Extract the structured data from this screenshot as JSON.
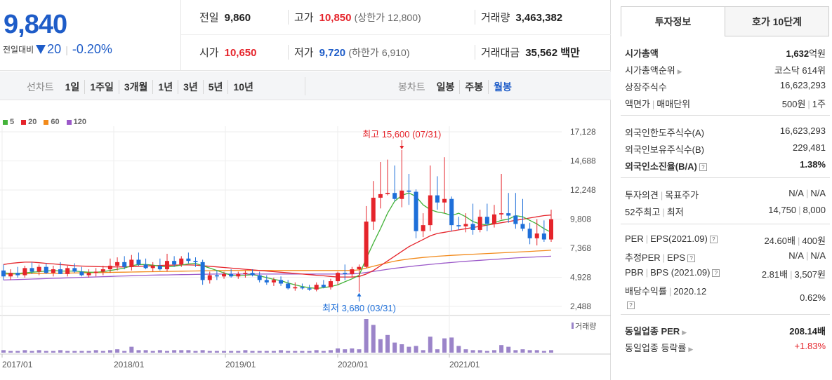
{
  "quote": {
    "price": "9,840",
    "change_label": "전일대비",
    "change_amount": "20",
    "change_pct": "-0.20%",
    "stats": {
      "prev_close_label": "전일",
      "prev_close": "9,860",
      "high_label": "고가",
      "high": "10,850",
      "upper_limit_label": "(상한가",
      "upper_limit": "12,800)",
      "volume_label": "거래량",
      "volume": "3,463,382",
      "open_label": "시가",
      "open": "10,650",
      "low_label": "저가",
      "low": "9,720",
      "lower_limit_label": "(하한가",
      "lower_limit": "6,910)",
      "trade_value_label": "거래대금",
      "trade_value": "35,562 백만"
    }
  },
  "tabs": {
    "line_chart_label": "선차트",
    "periods": [
      "1일",
      "1주일",
      "3개월",
      "1년",
      "3년",
      "5년",
      "10년"
    ],
    "candle_label": "봉차트",
    "candle_periods": [
      "일봉",
      "주봉",
      "월봉"
    ],
    "candle_selected": "월봉"
  },
  "legend": [
    {
      "label": "5",
      "color": "#44b33a"
    },
    {
      "label": "20",
      "color": "#e5242b"
    },
    {
      "label": "60",
      "color": "#f28a1b"
    },
    {
      "label": "120",
      "color": "#9b59c9"
    }
  ],
  "chart_data": {
    "type": "candlestick",
    "y_ticks": [
      "17,128",
      "14,688",
      "12,248",
      "9,808",
      "7,368",
      "4,928",
      "2,488"
    ],
    "ylim": [
      2488,
      17128
    ],
    "x_ticks": [
      "2017/01",
      "2018/01",
      "2019/01",
      "2020/01",
      "2021/01"
    ],
    "max_annotation": "최고 15,600 (07/31)",
    "min_annotation": "최저 3,680 (03/31)",
    "volume_label": "거래량",
    "colors": {
      "up": "#e5242b",
      "down": "#1e6fd9",
      "volume": "#9b84c9"
    },
    "candles": [
      {
        "o": 5500,
        "h": 6000,
        "l": 4700,
        "c": 5000
      },
      {
        "o": 5000,
        "h": 5600,
        "l": 4700,
        "c": 5300
      },
      {
        "o": 5300,
        "h": 5800,
        "l": 4900,
        "c": 5100
      },
      {
        "o": 5100,
        "h": 5900,
        "l": 4900,
        "c": 5700
      },
      {
        "o": 5700,
        "h": 6200,
        "l": 5200,
        "c": 5400
      },
      {
        "o": 5400,
        "h": 6000,
        "l": 5100,
        "c": 5800
      },
      {
        "o": 5800,
        "h": 6100,
        "l": 5200,
        "c": 5300
      },
      {
        "o": 5300,
        "h": 5900,
        "l": 5000,
        "c": 5600
      },
      {
        "o": 5600,
        "h": 6200,
        "l": 5200,
        "c": 5200
      },
      {
        "o": 5200,
        "h": 5900,
        "l": 5000,
        "c": 5700
      },
      {
        "o": 5700,
        "h": 6100,
        "l": 5300,
        "c": 5400
      },
      {
        "o": 5400,
        "h": 5800,
        "l": 5000,
        "c": 5100
      },
      {
        "o": 5100,
        "h": 5600,
        "l": 4900,
        "c": 5300
      },
      {
        "o": 5300,
        "h": 5700,
        "l": 5000,
        "c": 5400
      },
      {
        "o": 5400,
        "h": 5900,
        "l": 5100,
        "c": 5600
      },
      {
        "o": 5600,
        "h": 6500,
        "l": 5300,
        "c": 5900
      },
      {
        "o": 5900,
        "h": 6600,
        "l": 5500,
        "c": 6200
      },
      {
        "o": 6200,
        "h": 6700,
        "l": 5600,
        "c": 5800
      },
      {
        "o": 5800,
        "h": 6800,
        "l": 5500,
        "c": 6400
      },
      {
        "o": 6400,
        "h": 7000,
        "l": 5900,
        "c": 6000
      },
      {
        "o": 6000,
        "h": 6500,
        "l": 5600,
        "c": 5700
      },
      {
        "o": 5700,
        "h": 6200,
        "l": 5400,
        "c": 5900
      },
      {
        "o": 5900,
        "h": 6500,
        "l": 5500,
        "c": 5600
      },
      {
        "o": 5600,
        "h": 6900,
        "l": 5400,
        "c": 6300
      },
      {
        "o": 6300,
        "h": 6700,
        "l": 5800,
        "c": 6000
      },
      {
        "o": 6000,
        "h": 6700,
        "l": 5800,
        "c": 6500
      },
      {
        "o": 6500,
        "h": 7000,
        "l": 6100,
        "c": 6300
      },
      {
        "o": 6300,
        "h": 6600,
        "l": 5800,
        "c": 6200
      },
      {
        "o": 6200,
        "h": 6400,
        "l": 4300,
        "c": 4700
      },
      {
        "o": 4700,
        "h": 5400,
        "l": 4400,
        "c": 5100
      },
      {
        "o": 5100,
        "h": 5500,
        "l": 4700,
        "c": 5000
      },
      {
        "o": 5000,
        "h": 5400,
        "l": 4800,
        "c": 5200
      },
      {
        "o": 5200,
        "h": 5600,
        "l": 4900,
        "c": 5000
      },
      {
        "o": 5000,
        "h": 5400,
        "l": 4800,
        "c": 5200
      },
      {
        "o": 5200,
        "h": 5500,
        "l": 4900,
        "c": 5300
      },
      {
        "o": 5300,
        "h": 5600,
        "l": 5000,
        "c": 5100
      },
      {
        "o": 5100,
        "h": 5400,
        "l": 4500,
        "c": 4700
      },
      {
        "o": 4700,
        "h": 5100,
        "l": 4300,
        "c": 4500
      },
      {
        "o": 4500,
        "h": 4900,
        "l": 4200,
        "c": 4700
      },
      {
        "o": 4700,
        "h": 5000,
        "l": 4200,
        "c": 4400
      },
      {
        "o": 4400,
        "h": 4700,
        "l": 3900,
        "c": 4000
      },
      {
        "o": 4000,
        "h": 4500,
        "l": 3800,
        "c": 4100
      },
      {
        "o": 4100,
        "h": 4400,
        "l": 3900,
        "c": 4000
      },
      {
        "o": 4000,
        "h": 4300,
        "l": 3800,
        "c": 3900
      },
      {
        "o": 3900,
        "h": 4500,
        "l": 3750,
        "c": 4300
      },
      {
        "o": 4300,
        "h": 4700,
        "l": 4000,
        "c": 4100
      },
      {
        "o": 4100,
        "h": 4800,
        "l": 3900,
        "c": 4600
      },
      {
        "o": 4600,
        "h": 5400,
        "l": 4300,
        "c": 5300
      },
      {
        "o": 5300,
        "h": 6000,
        "l": 4700,
        "c": 5200
      },
      {
        "o": 5200,
        "h": 5800,
        "l": 4900,
        "c": 5600
      },
      {
        "o": 5600,
        "h": 6000,
        "l": 3680,
        "c": 5800
      },
      {
        "o": 5800,
        "h": 10900,
        "l": 5700,
        "c": 9600
      },
      {
        "o": 9600,
        "h": 13000,
        "l": 8900,
        "c": 11600
      },
      {
        "o": 11600,
        "h": 14600,
        "l": 10700,
        "c": 11900
      },
      {
        "o": 11900,
        "h": 14800,
        "l": 11800,
        "c": 12000
      },
      {
        "o": 12000,
        "h": 14300,
        "l": 11300,
        "c": 11500
      },
      {
        "o": 11500,
        "h": 15600,
        "l": 10800,
        "c": 12200
      },
      {
        "o": 12200,
        "h": 13600,
        "l": 11000,
        "c": 12100
      },
      {
        "o": 12100,
        "h": 12300,
        "l": 8200,
        "c": 8800
      },
      {
        "o": 8800,
        "h": 10300,
        "l": 8300,
        "c": 9300
      },
      {
        "o": 9300,
        "h": 14300,
        "l": 8800,
        "c": 11800
      },
      {
        "o": 11800,
        "h": 13400,
        "l": 10600,
        "c": 11200
      },
      {
        "o": 11200,
        "h": 15000,
        "l": 10300,
        "c": 11500
      },
      {
        "o": 11500,
        "h": 11700,
        "l": 8800,
        "c": 9300
      },
      {
        "o": 9300,
        "h": 10000,
        "l": 8900,
        "c": 9200
      },
      {
        "o": 9200,
        "h": 10300,
        "l": 8700,
        "c": 9400
      },
      {
        "o": 9400,
        "h": 11100,
        "l": 8500,
        "c": 8900
      },
      {
        "o": 8900,
        "h": 10600,
        "l": 8700,
        "c": 10000
      },
      {
        "o": 10000,
        "h": 11100,
        "l": 8800,
        "c": 9400
      },
      {
        "o": 9400,
        "h": 11000,
        "l": 9100,
        "c": 10200
      },
      {
        "o": 10200,
        "h": 13600,
        "l": 9800,
        "c": 10300
      },
      {
        "o": 10300,
        "h": 12000,
        "l": 9500,
        "c": 10100
      },
      {
        "o": 10100,
        "h": 12000,
        "l": 9000,
        "c": 9400
      },
      {
        "o": 9400,
        "h": 11500,
        "l": 8800,
        "c": 9000
      },
      {
        "o": 9000,
        "h": 9500,
        "l": 7700,
        "c": 8200
      },
      {
        "o": 8200,
        "h": 9800,
        "l": 7600,
        "c": 8600
      },
      {
        "o": 8600,
        "h": 9700,
        "l": 7900,
        "c": 8100
      },
      {
        "o": 8100,
        "h": 10600,
        "l": 7900,
        "c": 9800
      }
    ],
    "volume": [
      3,
      2,
      2,
      3,
      2,
      3,
      2,
      2,
      3,
      2,
      2,
      2,
      2,
      3,
      2,
      3,
      4,
      2,
      7,
      3,
      3,
      2,
      3,
      2,
      3,
      3,
      3,
      2,
      3,
      2,
      2,
      2,
      2,
      2,
      3,
      2,
      2,
      2,
      2,
      3,
      2,
      2,
      2,
      2,
      3,
      2,
      3,
      5,
      4,
      5,
      4,
      40,
      33,
      16,
      21,
      12,
      10,
      7,
      8,
      3,
      19,
      4,
      17,
      18,
      8,
      4,
      3,
      3,
      2,
      3,
      9,
      7,
      3,
      4,
      3,
      3,
      2,
      3
    ],
    "ma5": [
      5300,
      5250,
      5250,
      5300,
      5350,
      5400,
      5450,
      5500,
      5450,
      5450,
      5450,
      5400,
      5350,
      5350,
      5400,
      5500,
      5600,
      5700,
      5900,
      6000,
      6000,
      5950,
      5850,
      5800,
      5850,
      5950,
      6050,
      6100,
      5900,
      5700,
      5500,
      5300,
      5100,
      5050,
      5100,
      5150,
      5050,
      4900,
      4750,
      4650,
      4450,
      4300,
      4150,
      4050,
      4000,
      4050,
      4150,
      4300,
      4550,
      4800,
      5100,
      6500,
      7800,
      9000,
      10300,
      11300,
      11800,
      12000,
      11700,
      11000,
      10600,
      10400,
      10300,
      10100,
      10300,
      10000,
      9600,
      9400,
      9300,
      9500,
      9700,
      9800,
      10100,
      10000,
      9700,
      9400,
      9000,
      8700
    ],
    "ma20": [
      6000,
      6100,
      6150,
      6200,
      6200,
      6150,
      6100,
      6050,
      6000,
      5950,
      5900,
      5870,
      5850,
      5830,
      5810,
      5800,
      5800,
      5800,
      5820,
      5850,
      5870,
      5900,
      5920,
      5940,
      5950,
      5960,
      5960,
      5950,
      5900,
      5850,
      5800,
      5750,
      5700,
      5650,
      5600,
      5550,
      5500,
      5450,
      5400,
      5350,
      5300,
      5250,
      5200,
      5150,
      5100,
      5050,
      5000,
      4950,
      4950,
      4950,
      5000,
      5200,
      5500,
      5900,
      6300,
      6700,
      7100,
      7500,
      7800,
      8100,
      8400,
      8600,
      8700,
      8800,
      8900,
      9000,
      9100,
      9200,
      9300,
      9400,
      9500,
      9600,
      9700,
      9800,
      9900,
      10000,
      10100,
      10150
    ],
    "ma60": [
      5200,
      5200,
      5210,
      5220,
      5230,
      5240,
      5250,
      5260,
      5270,
      5280,
      5290,
      5300,
      5310,
      5320,
      5330,
      5340,
      5350,
      5360,
      5370,
      5380,
      5390,
      5400,
      5410,
      5420,
      5430,
      5440,
      5450,
      5460,
      5470,
      5480,
      5490,
      5500,
      5500,
      5500,
      5500,
      5500,
      5500,
      5500,
      5500,
      5500,
      5500,
      5500,
      5500,
      5500,
      5500,
      5500,
      5500,
      5500,
      5500,
      5500,
      5550,
      5700,
      5850,
      6000,
      6150,
      6280,
      6380,
      6460,
      6530,
      6590,
      6640,
      6690,
      6730,
      6770,
      6800,
      6830,
      6860,
      6890,
      6920,
      6950,
      6980,
      7010,
      7040,
      7070,
      7100,
      7130,
      7160,
      7200
    ],
    "ma120": [
      4700,
      4720,
      4740,
      4760,
      4780,
      4800,
      4820,
      4840,
      4860,
      4880,
      4900,
      4920,
      4940,
      4960,
      4980,
      5000,
      5020,
      5040,
      5060,
      5080,
      5100,
      5110,
      5120,
      5130,
      5140,
      5150,
      5160,
      5170,
      5180,
      5190,
      5200,
      5200,
      5200,
      5200,
      5200,
      5200,
      5200,
      5200,
      5200,
      5200,
      5200,
      5200,
      5200,
      5200,
      5200,
      5200,
      5200,
      5200,
      5200,
      5210,
      5250,
      5330,
      5420,
      5510,
      5600,
      5680,
      5750,
      5820,
      5890,
      5950,
      6010,
      6070,
      6120,
      6170,
      6220,
      6270,
      6310,
      6350,
      6390,
      6430,
      6470,
      6510,
      6550,
      6580,
      6610,
      6640,
      6670,
      6700
    ]
  },
  "invest_info": {
    "tab_active": "투자정보",
    "tab_other": "호가 10단계",
    "market_cap_label": "시가총액",
    "market_cap": "1,632",
    "market_cap_unit": "억원",
    "market_cap_rank_label": "시가총액순위",
    "market_cap_rank": "코스닥 614위",
    "shares_label": "상장주식수",
    "shares": "16,623,293",
    "par_label": "액면가",
    "trade_unit_label": "매매단위",
    "par": "500원",
    "trade_unit": "1주",
    "foreign_limit_label": "외국인한도주식수(A)",
    "foreign_limit": "16,623,293",
    "foreign_hold_label": "외국인보유주식수(B)",
    "foreign_hold": "229,481",
    "foreign_ratio_label": "외국인소진율(B/A)",
    "foreign_ratio": "1.38%",
    "opinion_label": "투자의견",
    "target_label": "목표주가",
    "opinion": "N/A",
    "target": "N/A",
    "w52_high_label": "52주최고",
    "w52_low_label": "최저",
    "w52_high": "14,750",
    "w52_low": "8,000",
    "per_label": "PER",
    "eps_label": "EPS(2021.09)",
    "per": "24.60배",
    "eps": "400원",
    "est_per_label": "추정PER",
    "est_eps_label": "EPS",
    "est_per": "N/A",
    "est_eps": "N/A",
    "pbr_label": "PBR",
    "bps_label": "BPS (2021.09)",
    "pbr": "2.81배",
    "bps": "3,507원",
    "dividend_label": "배당수익률",
    "dividend_year": "2020.12",
    "dividend": "0.62%",
    "sector_per_label": "동일업종 PER",
    "sector_per": "208.14배",
    "sector_change_label": "동일업종 등락률",
    "sector_change": "+1.83%"
  }
}
